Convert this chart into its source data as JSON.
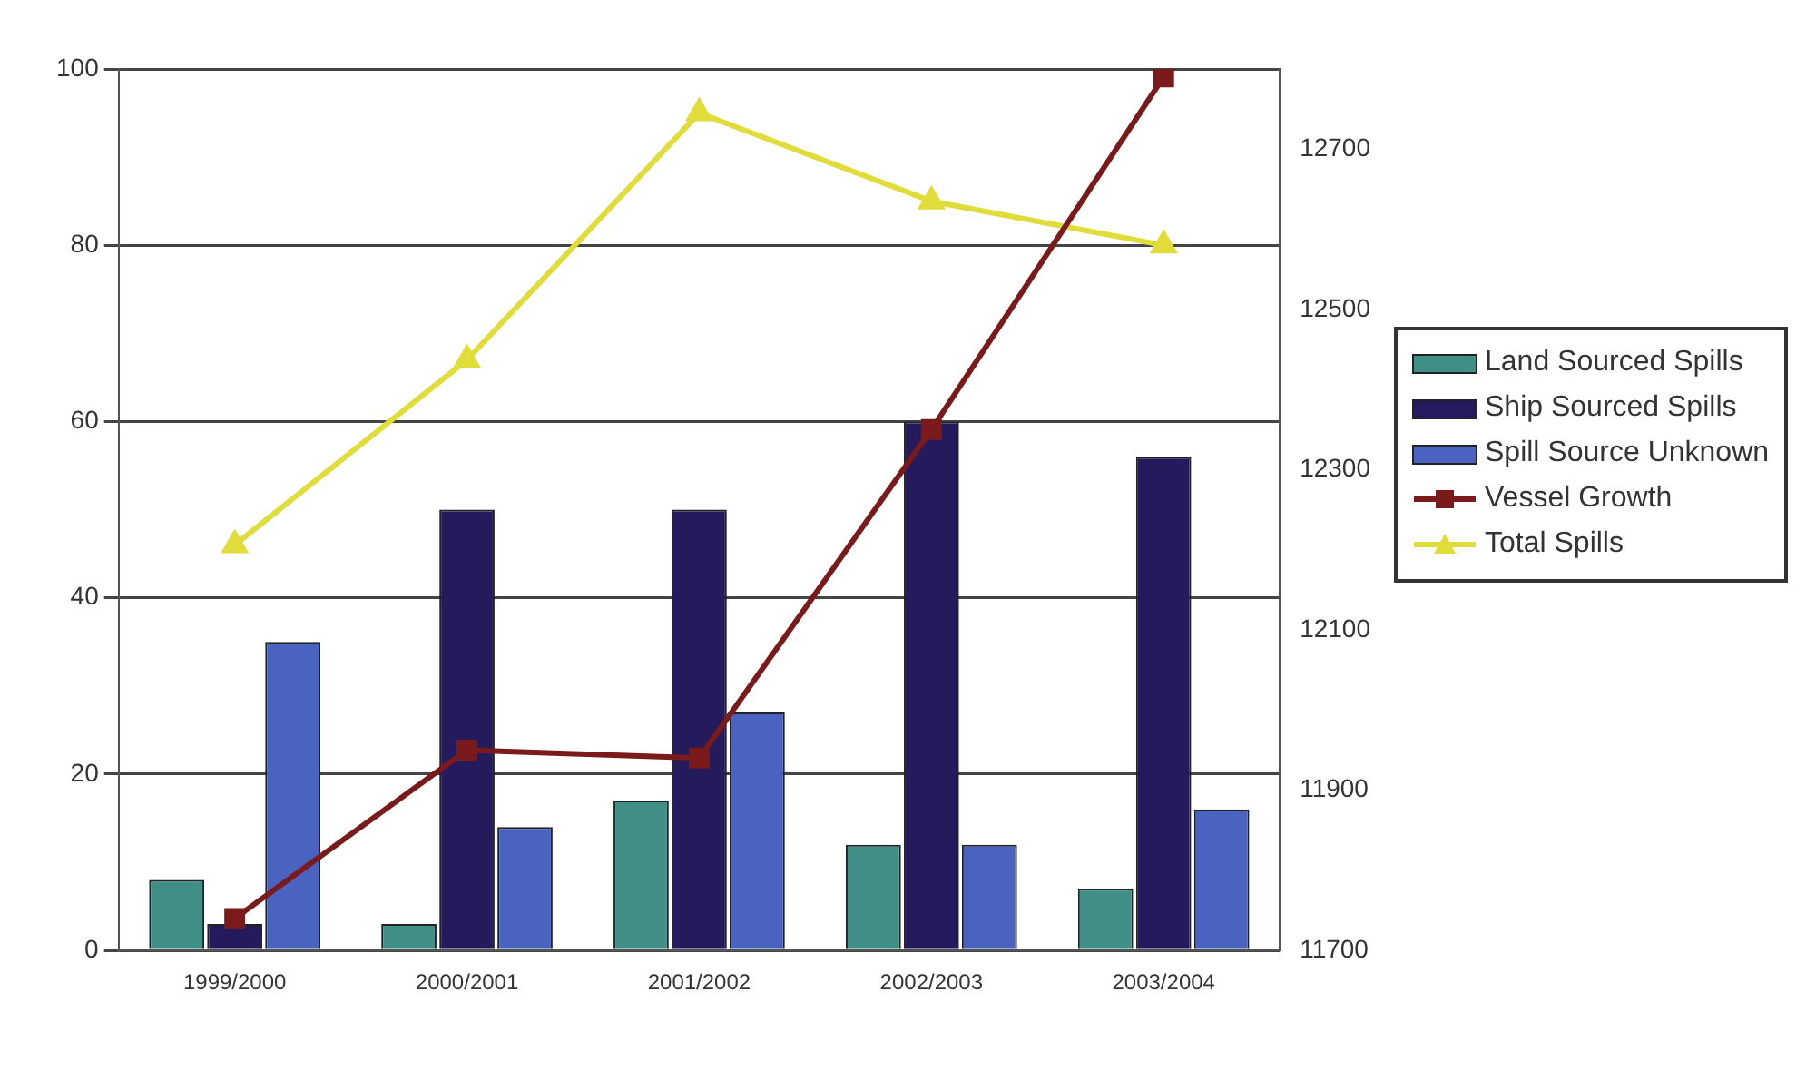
{
  "chart_data": {
    "type": "bar",
    "categories": [
      "1999/2000",
      "2000/2001",
      "2001/2002",
      "2002/2003",
      "2003/2004"
    ],
    "series": [
      {
        "name": "Land Sourced Spills",
        "color": "#3f8f87",
        "values": [
          8,
          3,
          17,
          12,
          7
        ]
      },
      {
        "name": "Ship Sourced Spills",
        "color": "#241a5c",
        "values": [
          3,
          50,
          50,
          60,
          56
        ]
      },
      {
        "name": "Spill Source Unknown",
        "color": "#4a63c0",
        "values": [
          35,
          14,
          27,
          12,
          16
        ]
      },
      {
        "name": "Vessel Growth",
        "type": "line",
        "axis": "y2",
        "color": "#7a1a1a",
        "marker": "square",
        "values": [
          11740,
          11950,
          11940,
          12350,
          12790
        ]
      },
      {
        "name": "Total Spills",
        "type": "line",
        "color": "#e0dc3a",
        "marker": "triangle",
        "values": [
          46,
          67,
          95,
          85,
          80
        ]
      }
    ],
    "ylim": [
      0,
      100
    ],
    "yticks": [
      0,
      20,
      40,
      60,
      80,
      100
    ],
    "y2lim": [
      11700,
      12800
    ],
    "y2ticks": [
      11700,
      11900,
      12100,
      12300,
      12500,
      12700
    ],
    "grid": "y",
    "legend": "right"
  }
}
